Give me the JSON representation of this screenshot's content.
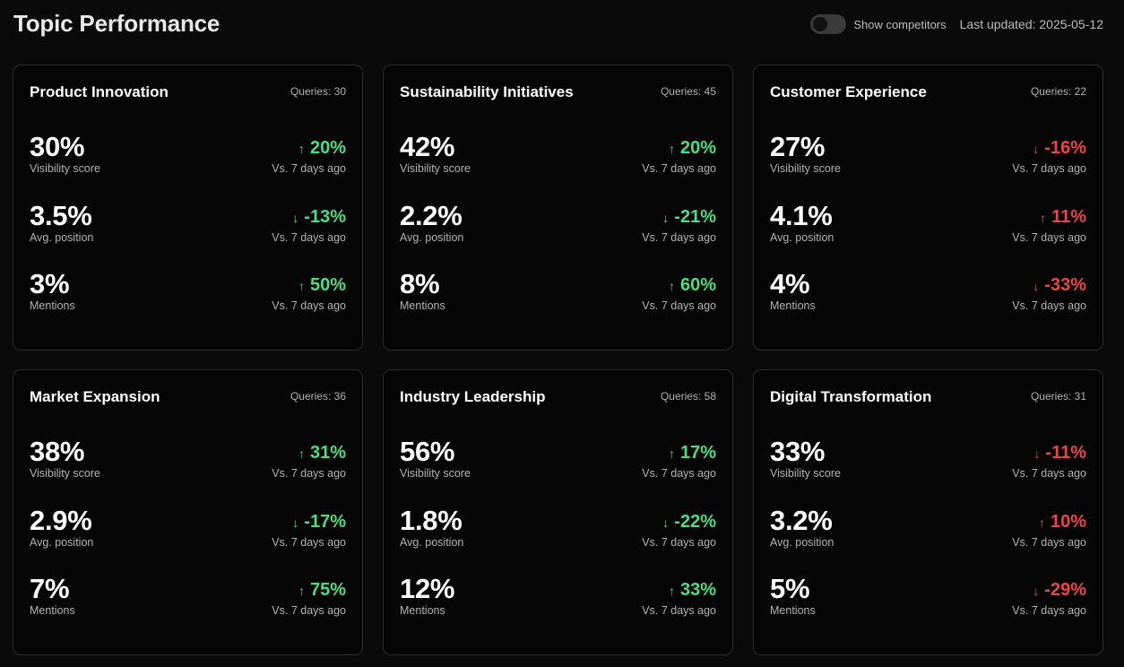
{
  "header": {
    "title": "Topic Performance",
    "toggle_label": "Show competitors",
    "last_updated": "Last updated: 2025-05-12"
  },
  "colors": {
    "up": "#4ade80",
    "down": "#ef4444"
  },
  "cards": [
    {
      "title": "Product Innovation",
      "queries": "Queries: 30",
      "metrics": [
        {
          "value": "30%",
          "label": "Visibility score",
          "arrow": "↑",
          "change": "20%",
          "trend": "up",
          "vs": "Vs. 7 days ago"
        },
        {
          "value": "3.5%",
          "label": "Avg. position",
          "arrow": "↓",
          "change": "-13%",
          "trend": "up",
          "vs": "Vs. 7 days ago"
        },
        {
          "value": "3%",
          "label": "Mentions",
          "arrow": "↑",
          "change": "50%",
          "trend": "up",
          "vs": "Vs. 7 days ago"
        }
      ]
    },
    {
      "title": "Sustainability Initiatives",
      "queries": "Queries: 45",
      "metrics": [
        {
          "value": "42%",
          "label": "Visibility score",
          "arrow": "↑",
          "change": "20%",
          "trend": "up",
          "vs": "Vs. 7 days ago"
        },
        {
          "value": "2.2%",
          "label": "Avg. position",
          "arrow": "↓",
          "change": "-21%",
          "trend": "up",
          "vs": "Vs. 7 days ago"
        },
        {
          "value": "8%",
          "label": "Mentions",
          "arrow": "↑",
          "change": "60%",
          "trend": "up",
          "vs": "Vs. 7 days ago"
        }
      ]
    },
    {
      "title": "Customer Experience",
      "queries": "Queries: 22",
      "metrics": [
        {
          "value": "27%",
          "label": "Visibility score",
          "arrow": "↓",
          "change": "-16%",
          "trend": "down",
          "vs": "Vs. 7 days ago"
        },
        {
          "value": "4.1%",
          "label": "Avg. position",
          "arrow": "↑",
          "change": "11%",
          "trend": "down",
          "vs": "Vs. 7 days ago"
        },
        {
          "value": "4%",
          "label": "Mentions",
          "arrow": "↓",
          "change": "-33%",
          "trend": "down",
          "vs": "Vs. 7 days ago"
        }
      ]
    },
    {
      "title": "Market Expansion",
      "queries": "Queries: 36",
      "metrics": [
        {
          "value": "38%",
          "label": "Visibility score",
          "arrow": "↑",
          "change": "31%",
          "trend": "up",
          "vs": "Vs. 7 days ago"
        },
        {
          "value": "2.9%",
          "label": "Avg. position",
          "arrow": "↓",
          "change": "-17%",
          "trend": "up",
          "vs": "Vs. 7 days ago"
        },
        {
          "value": "7%",
          "label": "Mentions",
          "arrow": "↑",
          "change": "75%",
          "trend": "up",
          "vs": "Vs. 7 days ago"
        }
      ]
    },
    {
      "title": "Industry Leadership",
      "queries": "Queries: 58",
      "metrics": [
        {
          "value": "56%",
          "label": "Visibility score",
          "arrow": "↑",
          "change": "17%",
          "trend": "up",
          "vs": "Vs. 7 days ago"
        },
        {
          "value": "1.8%",
          "label": "Avg. position",
          "arrow": "↓",
          "change": "-22%",
          "trend": "up",
          "vs": "Vs. 7 days ago"
        },
        {
          "value": "12%",
          "label": "Mentions",
          "arrow": "↑",
          "change": "33%",
          "trend": "up",
          "vs": "Vs. 7 days ago"
        }
      ]
    },
    {
      "title": "Digital Transformation",
      "queries": "Queries: 31",
      "metrics": [
        {
          "value": "33%",
          "label": "Visibility score",
          "arrow": "↓",
          "change": "-11%",
          "trend": "down",
          "vs": "Vs. 7 days ago"
        },
        {
          "value": "3.2%",
          "label": "Avg. position",
          "arrow": "↑",
          "change": "10%",
          "trend": "down",
          "vs": "Vs. 7 days ago"
        },
        {
          "value": "5%",
          "label": "Mentions",
          "arrow": "↓",
          "change": "-29%",
          "trend": "down",
          "vs": "Vs. 7 days ago"
        }
      ]
    }
  ]
}
